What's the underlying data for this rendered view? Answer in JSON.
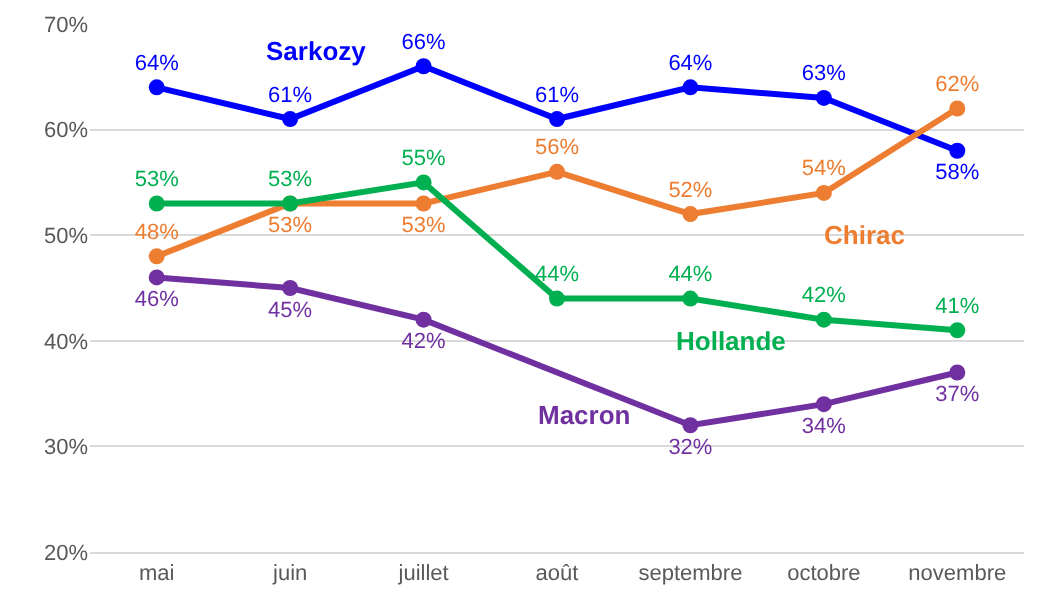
{
  "chart_data": {
    "type": "line",
    "categories": [
      "mai",
      "juin",
      "juillet",
      "août",
      "septembre",
      "octobre",
      "novembre"
    ],
    "series": [
      {
        "name": "Sarkozy",
        "color": "#0000ff",
        "values": [
          64,
          61,
          66,
          61,
          64,
          63,
          58
        ],
        "value_labels": [
          "64%",
          "61%",
          "66%",
          "61%",
          "64%",
          "63%",
          "58%"
        ]
      },
      {
        "name": "Chirac",
        "color": "#ed7d31",
        "values": [
          48,
          53,
          53,
          56,
          52,
          54,
          62
        ],
        "value_labels": [
          "48%",
          "53%",
          "53%",
          "56%",
          "52%",
          "54%",
          "62%"
        ]
      },
      {
        "name": "Hollande",
        "color": "#00b050",
        "values": [
          53,
          53,
          55,
          44,
          44,
          42,
          41
        ],
        "value_labels": [
          "53%",
          "53%",
          "55%",
          "44%",
          "44%",
          "42%",
          "41%"
        ]
      },
      {
        "name": "Macron",
        "color": "#7030a0",
        "values": [
          46,
          45,
          42,
          null,
          32,
          34,
          37
        ],
        "value_labels": [
          "46%",
          "45%",
          "42%",
          null,
          "32%",
          "34%",
          "37%"
        ]
      }
    ],
    "ylim": [
      20,
      70
    ],
    "yticks": [
      {
        "value": 20,
        "label": "20%"
      },
      {
        "value": 30,
        "label": "30%"
      },
      {
        "value": 40,
        "label": "40%"
      },
      {
        "value": 50,
        "label": "50%"
      },
      {
        "value": 60,
        "label": "60%"
      },
      {
        "value": 70,
        "label": "70%"
      }
    ],
    "grid": "y",
    "marker": "circle",
    "line_style": "solid"
  }
}
